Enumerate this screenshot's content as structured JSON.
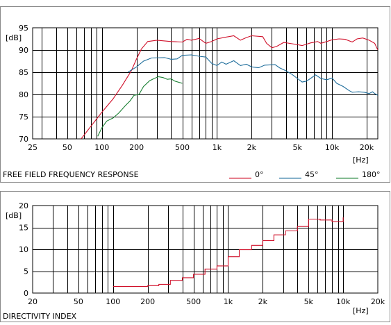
{
  "chart_data": [
    {
      "type": "line",
      "title": "FREE FIELD FREQUENCY RESPONSE",
      "ylabel": "[dB]",
      "xlabel": "[Hz]",
      "x_scale": "log",
      "xlim": [
        25,
        25000
      ],
      "ylim": [
        70,
        95
      ],
      "grid": true,
      "legend_position": "bottom-right",
      "x_tick_labels": [
        {
          "v": 25,
          "t": "25"
        },
        {
          "v": 50,
          "t": "50"
        },
        {
          "v": 100,
          "t": "100"
        },
        {
          "v": 200,
          "t": "200"
        },
        {
          "v": 500,
          "t": "500"
        },
        {
          "v": 1000,
          "t": "1k"
        },
        {
          "v": 2000,
          "t": "2k"
        },
        {
          "v": 5000,
          "t": "5k"
        },
        {
          "v": 10000,
          "t": "10k"
        },
        {
          "v": 20000,
          "t": "20k"
        }
      ],
      "y_tick_labels": [
        {
          "v": 70,
          "t": "70"
        },
        {
          "v": 75,
          "t": "75"
        },
        {
          "v": 80,
          "t": "80"
        },
        {
          "v": 85,
          "t": "85"
        },
        {
          "v": 90,
          "t": "90"
        },
        {
          "v": 95,
          "t": "95"
        }
      ],
      "series": [
        {
          "name": "0°",
          "color": "#d0102a",
          "points": [
            [
              66,
              70
            ],
            [
              80,
              72.8
            ],
            [
              100,
              76
            ],
            [
              125,
              79
            ],
            [
              150,
              82
            ],
            [
              180,
              85.3
            ],
            [
              200,
              88
            ],
            [
              220,
              90.2
            ],
            [
              250,
              91.9
            ],
            [
              300,
              92.2
            ],
            [
              400,
              91.9
            ],
            [
              500,
              91.8
            ],
            [
              550,
              92.4
            ],
            [
              600,
              92.2
            ],
            [
              700,
              92.6
            ],
            [
              800,
              91.5
            ],
            [
              900,
              91.9
            ],
            [
              1000,
              92.5
            ],
            [
              1200,
              92.9
            ],
            [
              1400,
              93.2
            ],
            [
              1600,
              92.2
            ],
            [
              1800,
              92.8
            ],
            [
              2000,
              93.2
            ],
            [
              2500,
              93
            ],
            [
              2700,
              91.5
            ],
            [
              3000,
              90.5
            ],
            [
              3300,
              90.8
            ],
            [
              3800,
              91.7
            ],
            [
              4500,
              91.4
            ],
            [
              5500,
              91
            ],
            [
              6500,
              91.6
            ],
            [
              7500,
              91.9
            ],
            [
              8000,
              91.5
            ],
            [
              9000,
              91.9
            ],
            [
              10000,
              92.3
            ],
            [
              11500,
              92.5
            ],
            [
              13000,
              92.4
            ],
            [
              15000,
              91.8
            ],
            [
              16500,
              92.5
            ],
            [
              18500,
              92.7
            ],
            [
              21000,
              92.2
            ],
            [
              23500,
              91.5
            ],
            [
              25000,
              90
            ]
          ]
        },
        {
          "name": "45°",
          "color": "#1f6e9c",
          "points": [
            [
              168,
              85
            ],
            [
              200,
              86.2
            ],
            [
              230,
              87.5
            ],
            [
              270,
              88.2
            ],
            [
              350,
              88.3
            ],
            [
              400,
              87.9
            ],
            [
              450,
              88
            ],
            [
              500,
              88.8
            ],
            [
              600,
              88.9
            ],
            [
              700,
              88.6
            ],
            [
              800,
              88.4
            ],
            [
              900,
              87
            ],
            [
              1000,
              86.5
            ],
            [
              1100,
              87.3
            ],
            [
              1200,
              86.8
            ],
            [
              1400,
              87.6
            ],
            [
              1600,
              86.5
            ],
            [
              1800,
              86.8
            ],
            [
              2000,
              86.2
            ],
            [
              2300,
              86
            ],
            [
              2600,
              86.6
            ],
            [
              3200,
              86.7
            ],
            [
              3500,
              86
            ],
            [
              4000,
              85.3
            ],
            [
              4500,
              84.5
            ],
            [
              5000,
              83.6
            ],
            [
              5500,
              82.8
            ],
            [
              6000,
              83
            ],
            [
              6500,
              83.6
            ],
            [
              7200,
              84.4
            ],
            [
              8000,
              83.6
            ],
            [
              9000,
              83.3
            ],
            [
              10000,
              83.7
            ],
            [
              11000,
              82.5
            ],
            [
              12500,
              81.8
            ],
            [
              14000,
              80.9
            ],
            [
              15000,
              80.5
            ],
            [
              17000,
              80.6
            ],
            [
              19000,
              80.5
            ],
            [
              21000,
              80.2
            ],
            [
              22500,
              80.6
            ],
            [
              23500,
              80.2
            ],
            [
              25000,
              79.8
            ]
          ]
        },
        {
          "name": "180°",
          "color": "#1a8033",
          "points": [
            [
              92,
              70.6
            ],
            [
              100,
              72.5
            ],
            [
              110,
              74
            ],
            [
              125,
              74.7
            ],
            [
              140,
              75.8
            ],
            [
              160,
              77.5
            ],
            [
              175,
              78.5
            ],
            [
              190,
              79.8
            ],
            [
              210,
              80
            ],
            [
              230,
              81.8
            ],
            [
              260,
              83.1
            ],
            [
              280,
              83.5
            ],
            [
              310,
              84
            ],
            [
              340,
              83.8
            ],
            [
              370,
              83.4
            ],
            [
              400,
              83.5
            ],
            [
              430,
              83
            ],
            [
              470,
              82.7
            ],
            [
              500,
              82.5
            ]
          ]
        }
      ]
    },
    {
      "type": "line",
      "title": "DIRECTIVITY INDEX",
      "ylabel": "[dB]",
      "xlabel": "[Hz]",
      "x_scale": "log",
      "xlim": [
        20,
        20000
      ],
      "ylim": [
        0,
        20
      ],
      "grid": true,
      "x_tick_labels": [
        {
          "v": 20,
          "t": "20"
        },
        {
          "v": 50,
          "t": "50"
        },
        {
          "v": 100,
          "t": "100"
        },
        {
          "v": 200,
          "t": "200"
        },
        {
          "v": 500,
          "t": "500"
        },
        {
          "v": 1000,
          "t": "1k"
        },
        {
          "v": 2000,
          "t": "2k"
        },
        {
          "v": 5000,
          "t": "5k"
        },
        {
          "v": 10000,
          "t": "10k"
        },
        {
          "v": 20000,
          "t": "20k"
        }
      ],
      "y_tick_labels": [
        {
          "v": 0,
          "t": "0"
        },
        {
          "v": 5,
          "t": "5"
        },
        {
          "v": 10,
          "t": "10"
        },
        {
          "v": 15,
          "t": "15"
        },
        {
          "v": 20,
          "t": "20"
        }
      ],
      "series": [
        {
          "color": "#d0102a",
          "step_points": [
            [
              100,
              1.5
            ],
            [
              125,
              1.5
            ],
            [
              160,
              1.5
            ],
            [
              200,
              1.7
            ],
            [
              250,
              2
            ],
            [
              315,
              2.9
            ],
            [
              400,
              3.5
            ],
            [
              500,
              4.3
            ],
            [
              630,
              5.5
            ],
            [
              800,
              6.2
            ],
            [
              1000,
              8.3
            ],
            [
              1250,
              9.9
            ],
            [
              1600,
              10.9
            ],
            [
              2000,
              12
            ],
            [
              2500,
              13.3
            ],
            [
              3150,
              14.2
            ],
            [
              4000,
              15.2
            ],
            [
              5000,
              16.9
            ],
            [
              6300,
              16.7
            ],
            [
              8000,
              16.3
            ],
            [
              10000,
              17.3
            ]
          ]
        }
      ]
    }
  ]
}
